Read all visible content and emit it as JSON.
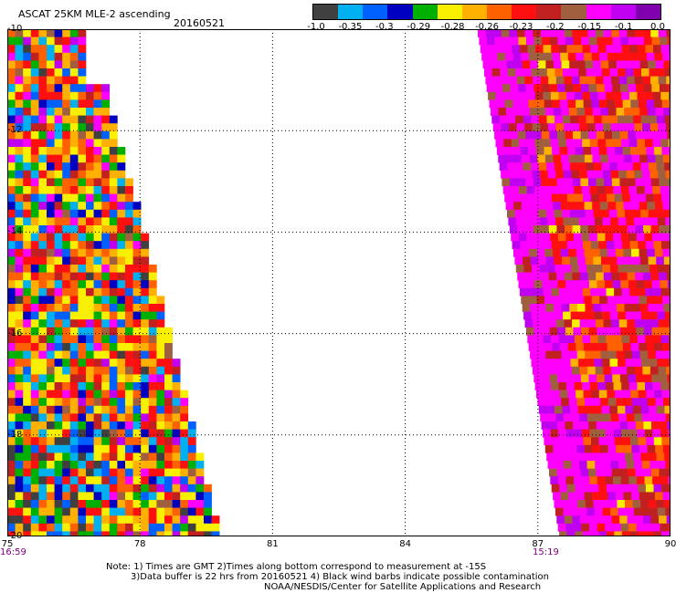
{
  "header": {
    "title": "ASCAT 25KM MLE-2 ascending",
    "date": "20160521"
  },
  "colorbar": {
    "colors": [
      "#404040",
      "#00b0f0",
      "#0060ff",
      "#0000c0",
      "#00b000",
      "#f8f000",
      "#ffb000",
      "#ff6000",
      "#ff1010",
      "#c02020",
      "#a06040",
      "#ff00ff",
      "#c000f0",
      "#8000b0"
    ],
    "labels": [
      "-1.0",
      "-0.35",
      "-0.3",
      "-0.29",
      "-0.28",
      "-0.26",
      "-0.23",
      "-0.2",
      "-0.15",
      "-0.1",
      "0.0"
    ]
  },
  "map": {
    "lon_range": [
      75,
      90
    ],
    "lat_range": [
      -20,
      -10
    ],
    "x_ticks": [
      "75",
      "78",
      "81",
      "84",
      "87",
      "90"
    ],
    "y_ticks": [
      "-10",
      "-12",
      "-14",
      "-16",
      "-18",
      "-20"
    ],
    "west_swath_time": "16:59",
    "east_swath_time": "15:19"
  },
  "notes": {
    "line1": "Note: 1) Times are GMT 2)Times along bottom correspond to measurement at -15S",
    "line2": "3)Data buffer is 22 hrs from 20160521 4) Black wind barbs indicate possible contamination",
    "line3": "NOAA/NESDIS/Center for Satellite Applications and Research"
  }
}
